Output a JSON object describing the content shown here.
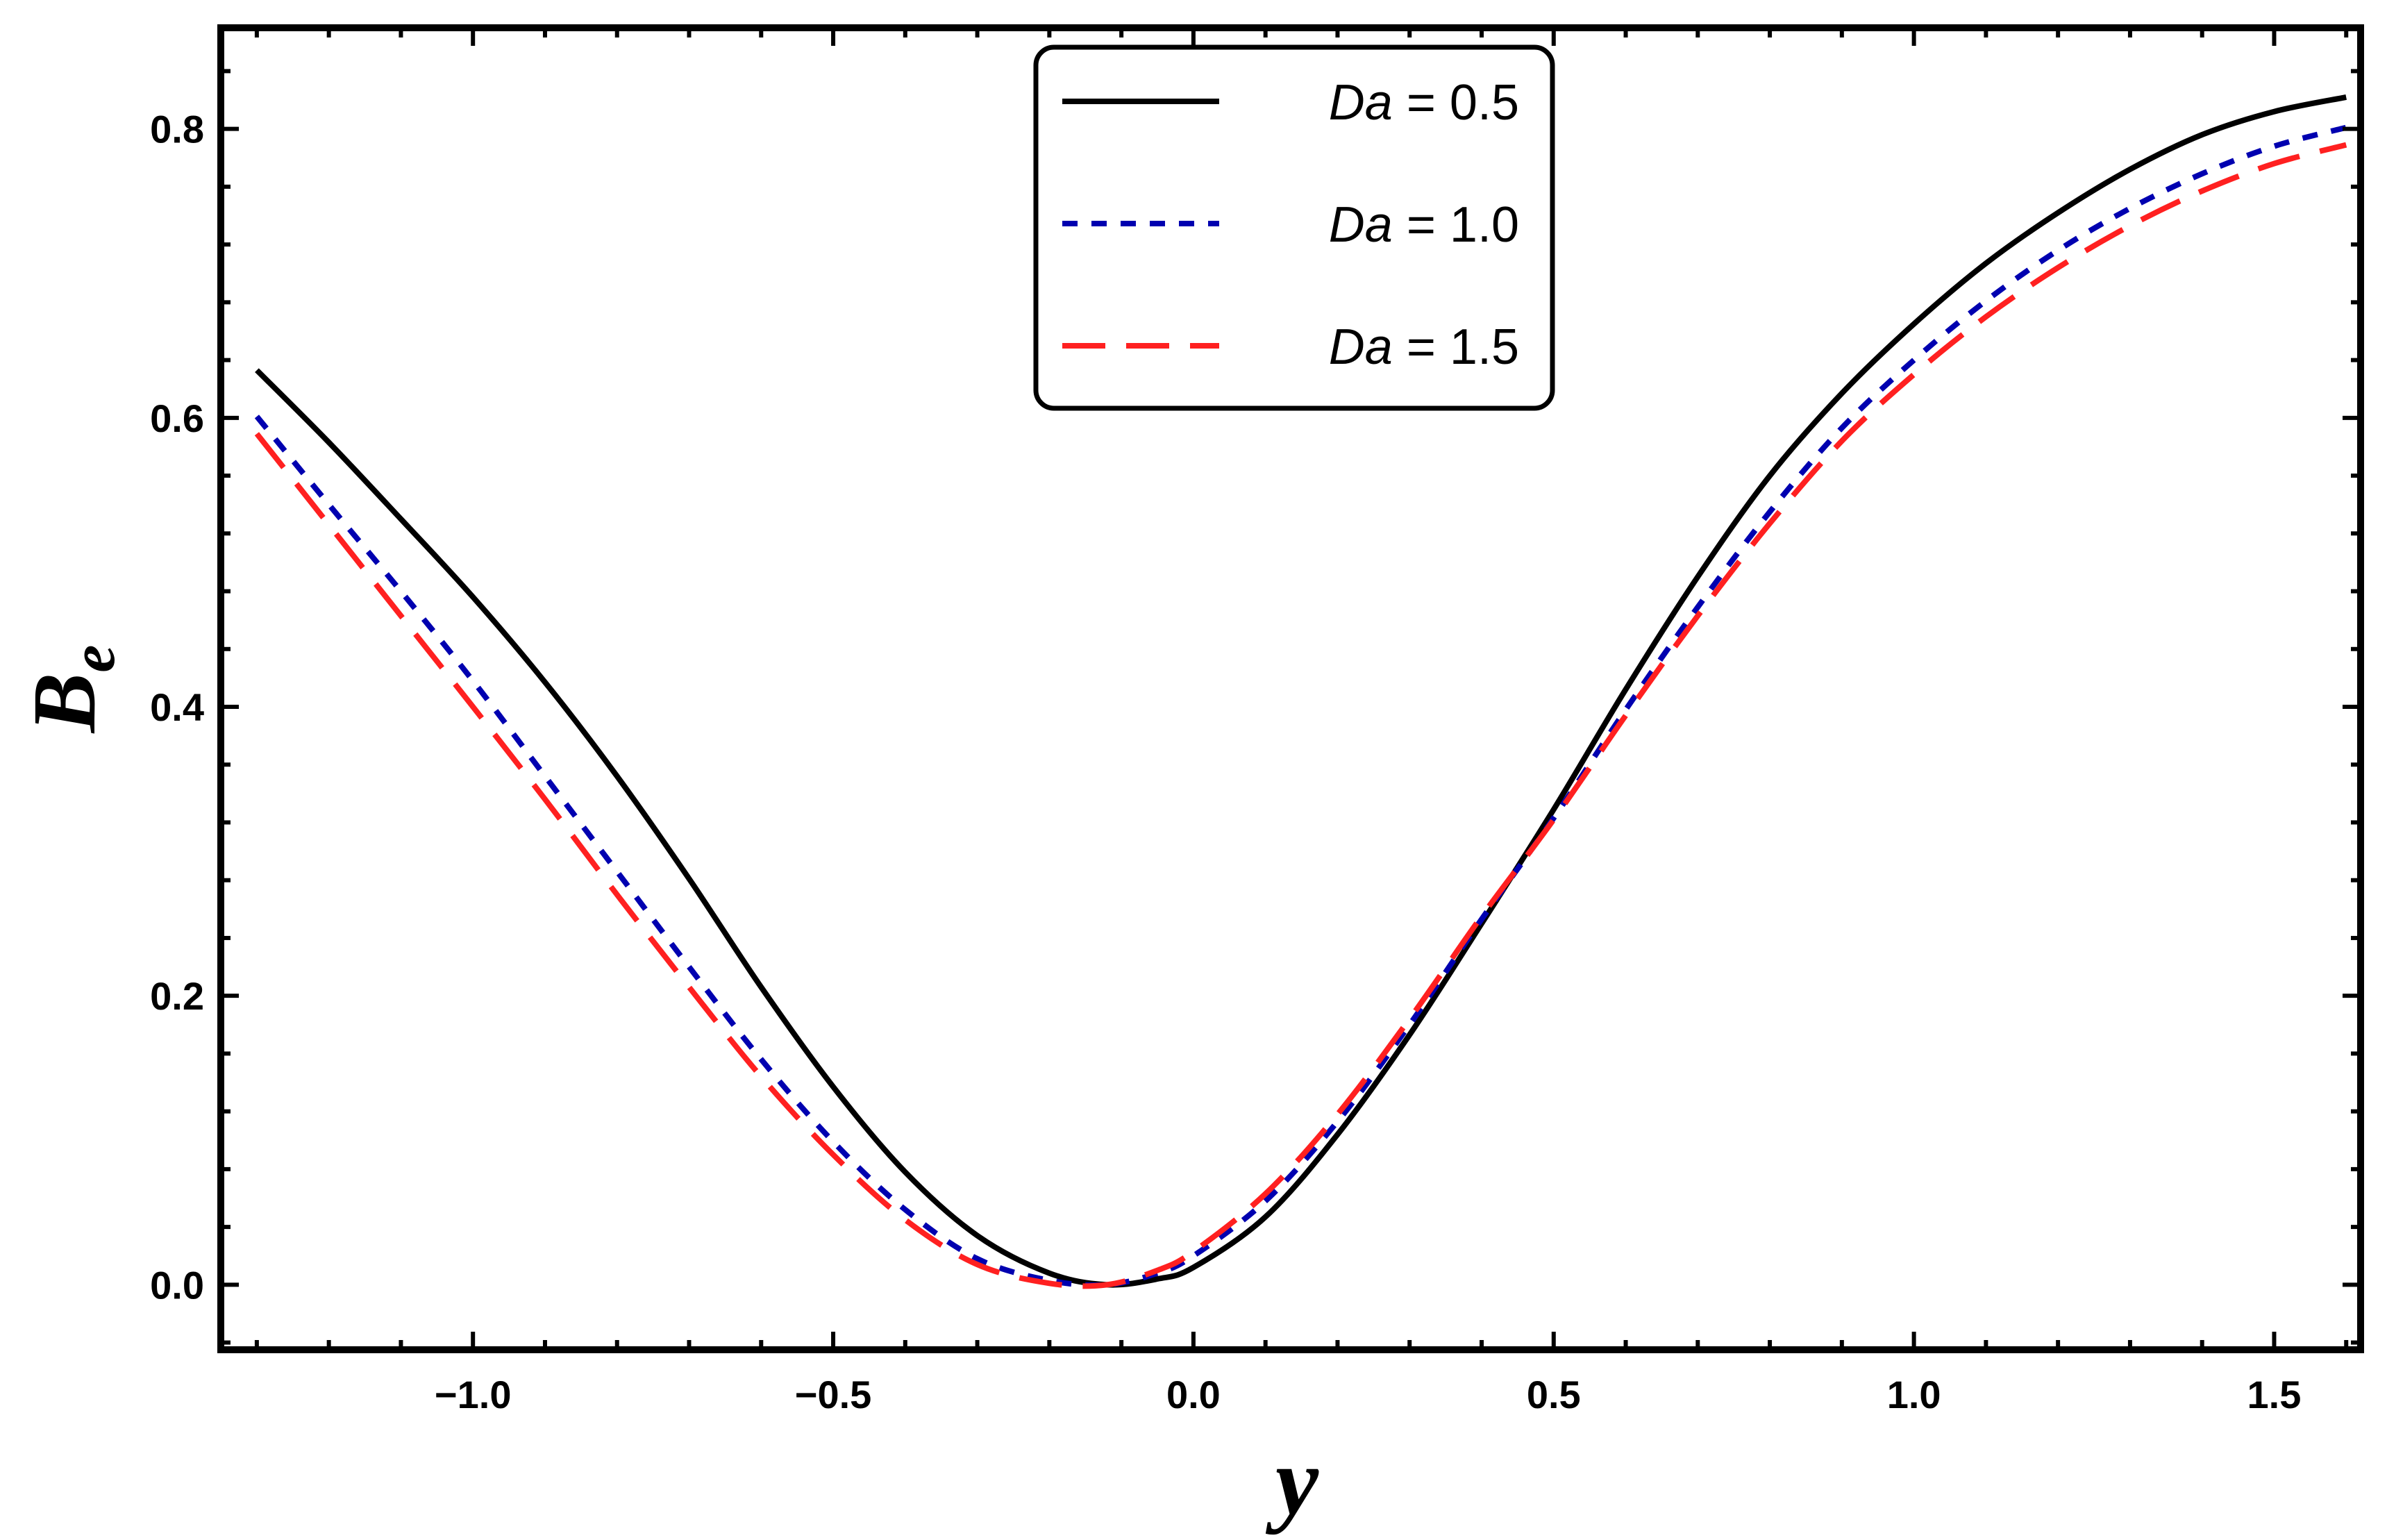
{
  "chart_data": {
    "type": "line",
    "title": "",
    "xlabel": "y",
    "ylabel_main": "B",
    "ylabel_sub": "e",
    "xlim": [
      -1.35,
      1.62
    ],
    "ylim": [
      -0.045,
      0.87
    ],
    "x_ticks": [
      -1.0,
      -0.5,
      0.0,
      0.5,
      1.0,
      1.5
    ],
    "x_tick_labels": [
      "−1.0",
      "−0.5",
      "0.0",
      "0.5",
      "1.0",
      "1.5"
    ],
    "y_ticks": [
      0.0,
      0.2,
      0.4,
      0.6,
      0.8
    ],
    "y_tick_labels": [
      "0.0",
      "0.2",
      "0.4",
      "0.6",
      "0.8"
    ],
    "grid": false,
    "legend_position": "top-center",
    "series": [
      {
        "name": "Da = 0.5",
        "var": "Da",
        "value_text": " = 0.5",
        "color": "#000000",
        "dash": "solid",
        "x": [
          -1.3,
          -1.2,
          -1.1,
          -1.0,
          -0.9,
          -0.8,
          -0.7,
          -0.6,
          -0.5,
          -0.4,
          -0.3,
          -0.2,
          -0.12,
          -0.05,
          0.0,
          0.1,
          0.2,
          0.3,
          0.4,
          0.5,
          0.6,
          0.7,
          0.8,
          0.9,
          1.0,
          1.1,
          1.2,
          1.3,
          1.4,
          1.5,
          1.6
        ],
        "y": [
          0.633,
          0.583,
          0.53,
          0.476,
          0.417,
          0.352,
          0.281,
          0.206,
          0.137,
          0.078,
          0.034,
          0.008,
          0.0,
          0.004,
          0.012,
          0.047,
          0.104,
          0.173,
          0.25,
          0.329,
          0.412,
          0.49,
          0.56,
          0.617,
          0.665,
          0.707,
          0.742,
          0.772,
          0.796,
          0.812,
          0.822
        ]
      },
      {
        "name": "Da = 1.0",
        "var": "Da",
        "value_text": " = 1.0",
        "color": "#0000b0",
        "dash": "short",
        "x": [
          -1.3,
          -1.2,
          -1.1,
          -1.0,
          -0.9,
          -0.8,
          -0.7,
          -0.6,
          -0.5,
          -0.4,
          -0.3,
          -0.2,
          -0.12,
          -0.05,
          0.0,
          0.1,
          0.2,
          0.3,
          0.4,
          0.5,
          0.6,
          0.7,
          0.8,
          0.9,
          1.0,
          1.1,
          1.2,
          1.3,
          1.4,
          1.5,
          1.6
        ],
        "y": [
          0.601,
          0.54,
          0.48,
          0.418,
          0.352,
          0.286,
          0.22,
          0.156,
          0.099,
          0.052,
          0.018,
          0.003,
          0.0,
          0.008,
          0.02,
          0.058,
          0.113,
          0.18,
          0.253,
          0.323,
          0.398,
          0.469,
          0.535,
          0.593,
          0.64,
          0.681,
          0.716,
          0.745,
          0.769,
          0.788,
          0.801
        ]
      },
      {
        "name": "Da = 1.5",
        "var": "Da",
        "value_text": " = 1.5",
        "color": "#ff2020",
        "dash": "long",
        "x": [
          -1.3,
          -1.2,
          -1.1,
          -1.0,
          -0.9,
          -0.8,
          -0.7,
          -0.6,
          -0.5,
          -0.4,
          -0.3,
          -0.2,
          -0.12,
          -0.05,
          0.0,
          0.1,
          0.2,
          0.3,
          0.4,
          0.5,
          0.6,
          0.7,
          0.8,
          0.9,
          1.0,
          1.1,
          1.2,
          1.3,
          1.4,
          1.5,
          1.6
        ],
        "y": [
          0.589,
          0.526,
          0.463,
          0.4,
          0.336,
          0.27,
          0.206,
          0.144,
          0.09,
          0.045,
          0.014,
          0.001,
          0.0,
          0.01,
          0.023,
          0.063,
          0.118,
          0.184,
          0.255,
          0.322,
          0.394,
          0.463,
          0.527,
          0.584,
          0.63,
          0.67,
          0.704,
          0.733,
          0.757,
          0.776,
          0.789
        ]
      }
    ]
  }
}
